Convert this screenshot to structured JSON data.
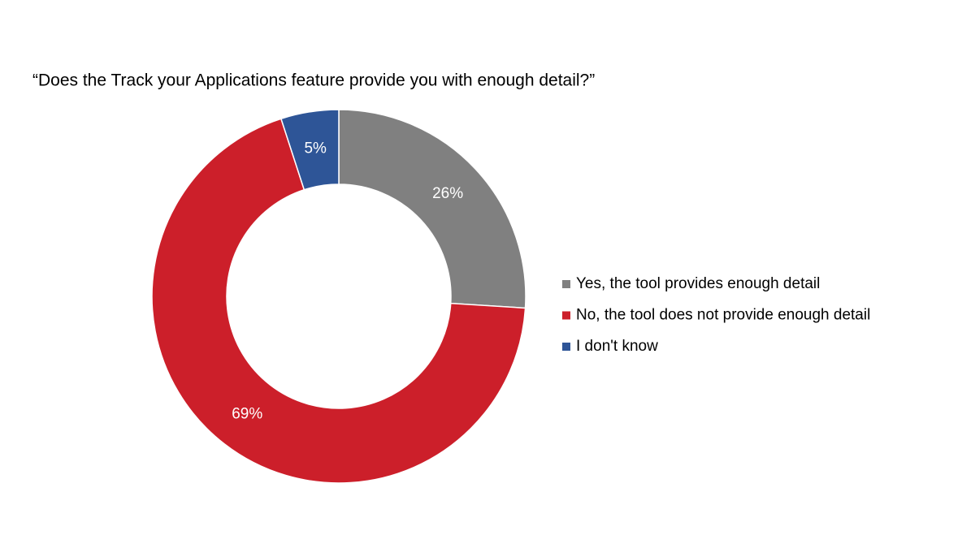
{
  "chart_data": {
    "type": "donut",
    "title": "“Does the Track your Applications feature provide you with enough detail?”",
    "categories": [
      "Yes, the tool provides enough detail",
      "No, the tool does not provide enough detail",
      "I don't know"
    ],
    "values": [
      26,
      69,
      5
    ],
    "value_labels": [
      "26%",
      "69%",
      "5%"
    ],
    "colors": [
      "#808080",
      "#cc1f2a",
      "#2e5597"
    ],
    "legend": "right"
  }
}
